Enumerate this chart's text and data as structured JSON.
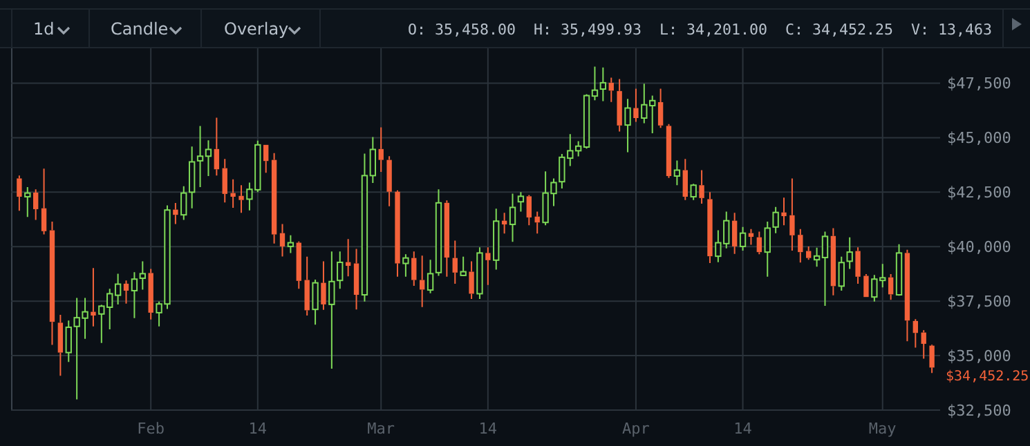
{
  "chart_data": {
    "type": "candlestick",
    "x": [
      "--01-16",
      "--01-17",
      "--01-18",
      "--01-19",
      "--01-20",
      "--01-21",
      "--01-22",
      "--01-23",
      "--01-24",
      "--01-25",
      "--01-26",
      "--01-27",
      "--01-28",
      "--01-29",
      "--01-30",
      "--01-31",
      "--02-01",
      "--02-02",
      "--02-03",
      "--02-04",
      "--02-05",
      "--02-06",
      "--02-07",
      "--02-08",
      "--02-09",
      "--02-10",
      "--02-11",
      "--02-12",
      "--02-13",
      "--02-14",
      "--02-15",
      "--02-16",
      "--02-17",
      "--02-18",
      "--02-19",
      "--02-20",
      "--02-21",
      "--02-22",
      "--02-23",
      "--02-24",
      "--02-25",
      "--02-26",
      "--02-27",
      "--02-28",
      "--03-01",
      "--03-02",
      "--03-03",
      "--03-04",
      "--03-05",
      "--03-06",
      "--03-07",
      "--03-08",
      "--03-09",
      "--03-10",
      "--03-11",
      "--03-12",
      "--03-13",
      "--03-14",
      "--03-15",
      "--03-16",
      "--03-17",
      "--03-18",
      "--03-19",
      "--03-20",
      "--03-21",
      "--03-22",
      "--03-23",
      "--03-24",
      "--03-25",
      "--03-26",
      "--03-27",
      "--03-28",
      "--03-29",
      "--03-30",
      "--03-31",
      "--04-01",
      "--04-02",
      "--04-03",
      "--04-04",
      "--04-05",
      "--04-06",
      "--04-07",
      "--04-08",
      "--04-09",
      "--04-10",
      "--04-11",
      "--04-12",
      "--04-13",
      "--04-14",
      "--04-15",
      "--04-16",
      "--04-17",
      "--04-18",
      "--04-19",
      "--04-20",
      "--04-21",
      "--04-22",
      "--04-23",
      "--04-24",
      "--04-25",
      "--04-26",
      "--04-27",
      "--04-28",
      "--04-29",
      "--04-30",
      "--05-01",
      "--05-02",
      "--05-03",
      "--05-04",
      "--05-05",
      "--05-06",
      "--05-07"
    ],
    "ohlc": [
      [
        43130,
        43260,
        41650,
        42290
      ],
      [
        42290,
        42730,
        41360,
        42460
      ],
      [
        42480,
        42630,
        41230,
        41720
      ],
      [
        41760,
        43580,
        40560,
        40710
      ],
      [
        40750,
        41150,
        35490,
        36550
      ],
      [
        36510,
        36870,
        34080,
        35140
      ],
      [
        35140,
        36610,
        34710,
        36300
      ],
      [
        36340,
        37650,
        32990,
        36740
      ],
      [
        36720,
        37650,
        35770,
        37010
      ],
      [
        37010,
        39020,
        36340,
        36840
      ],
      [
        36910,
        37330,
        35580,
        37270
      ],
      [
        37220,
        38070,
        36210,
        37840
      ],
      [
        37770,
        38760,
        37350,
        38280
      ],
      [
        38300,
        38450,
        37390,
        37980
      ],
      [
        37980,
        38830,
        36720,
        38510
      ],
      [
        38550,
        39330,
        38030,
        38760
      ],
      [
        38790,
        38980,
        36660,
        36970
      ],
      [
        36970,
        37480,
        36340,
        37370
      ],
      [
        37370,
        41890,
        37140,
        41680
      ],
      [
        41700,
        42000,
        41040,
        41460
      ],
      [
        41460,
        42770,
        41230,
        42460
      ],
      [
        42500,
        44590,
        41760,
        43890
      ],
      [
        43940,
        45540,
        42730,
        44150
      ],
      [
        44150,
        44880,
        43240,
        44460
      ],
      [
        44480,
        45920,
        43260,
        43550
      ],
      [
        43600,
        44020,
        42030,
        42420
      ],
      [
        42460,
        43090,
        41780,
        42290
      ],
      [
        42330,
        42820,
        41550,
        42140
      ],
      [
        42180,
        42940,
        41660,
        42630
      ],
      [
        42610,
        44860,
        42500,
        44670
      ],
      [
        44670,
        44670,
        43390,
        43930
      ],
      [
        43980,
        44290,
        40140,
        40560
      ],
      [
        40620,
        41040,
        39550,
        40010
      ],
      [
        40010,
        40520,
        39710,
        40180
      ],
      [
        40180,
        40240,
        38070,
        38430
      ],
      [
        38470,
        39540,
        36840,
        37080
      ],
      [
        37120,
        38490,
        36420,
        38340
      ],
      [
        38340,
        39330,
        37100,
        37350
      ],
      [
        37350,
        39780,
        34400,
        38400
      ],
      [
        38450,
        39780,
        38070,
        39280
      ],
      [
        39290,
        40350,
        38640,
        39120
      ],
      [
        39230,
        39900,
        37120,
        37790
      ],
      [
        37790,
        44270,
        37480,
        43260
      ],
      [
        43260,
        45030,
        42920,
        44460
      ],
      [
        44480,
        45470,
        43430,
        43980
      ],
      [
        43980,
        44150,
        41850,
        42520
      ],
      [
        42520,
        42580,
        38620,
        39230
      ],
      [
        39230,
        39650,
        38620,
        39480
      ],
      [
        39480,
        39780,
        38200,
        38470
      ],
      [
        38470,
        39590,
        37230,
        38030
      ],
      [
        38010,
        39400,
        37860,
        38760
      ],
      [
        38810,
        42630,
        38660,
        42010
      ],
      [
        42010,
        42120,
        38620,
        39500
      ],
      [
        39480,
        40280,
        38300,
        38810
      ],
      [
        38680,
        39540,
        38660,
        38850
      ],
      [
        38850,
        39330,
        37600,
        37840
      ],
      [
        37840,
        39970,
        37600,
        39710
      ],
      [
        39710,
        39970,
        38240,
        39380
      ],
      [
        39380,
        41740,
        38950,
        41170
      ],
      [
        41190,
        41550,
        40600,
        41020
      ],
      [
        41020,
        42430,
        40220,
        41800
      ],
      [
        42060,
        42500,
        41610,
        42310
      ],
      [
        42310,
        42370,
        40980,
        41340
      ],
      [
        41380,
        41610,
        40600,
        41110
      ],
      [
        41110,
        43450,
        40980,
        42460
      ],
      [
        42440,
        43130,
        41860,
        42940
      ],
      [
        42980,
        44250,
        42670,
        44100
      ],
      [
        44060,
        45160,
        43700,
        44400
      ],
      [
        44400,
        44840,
        44140,
        44610
      ],
      [
        44570,
        46990,
        44500,
        46930
      ],
      [
        46910,
        48260,
        46720,
        47180
      ],
      [
        47230,
        48220,
        46680,
        47520
      ],
      [
        47520,
        47750,
        46640,
        47160
      ],
      [
        47140,
        47690,
        45280,
        45560
      ],
      [
        45580,
        46780,
        44330,
        46360
      ],
      [
        46360,
        47250,
        45730,
        45900
      ],
      [
        45900,
        47480,
        45660,
        46510
      ],
      [
        46470,
        46930,
        45200,
        46700
      ],
      [
        46630,
        47250,
        45450,
        45560
      ],
      [
        45540,
        45620,
        43150,
        43240
      ],
      [
        43240,
        43950,
        42820,
        43510
      ],
      [
        43510,
        44020,
        42140,
        42290
      ],
      [
        42290,
        42880,
        42140,
        42820
      ],
      [
        42820,
        43510,
        41970,
        42230
      ],
      [
        42180,
        42500,
        39250,
        39560
      ],
      [
        39560,
        40750,
        39290,
        40180
      ],
      [
        40140,
        41610,
        39920,
        41190
      ],
      [
        41190,
        41550,
        39670,
        40010
      ],
      [
        40010,
        40900,
        39820,
        40620
      ],
      [
        40620,
        40810,
        40090,
        40450
      ],
      [
        40430,
        40690,
        39650,
        39750
      ],
      [
        39750,
        41150,
        38620,
        40850
      ],
      [
        40900,
        41820,
        40620,
        41570
      ],
      [
        41570,
        42250,
        40980,
        41400
      ],
      [
        41440,
        43130,
        39820,
        40520
      ],
      [
        40540,
        40810,
        39270,
        39750
      ],
      [
        39800,
        40010,
        39400,
        39480
      ],
      [
        39400,
        39950,
        39080,
        39570
      ],
      [
        39500,
        40690,
        37280,
        40470
      ],
      [
        40490,
        40850,
        37770,
        38190
      ],
      [
        38190,
        39540,
        37980,
        39270
      ],
      [
        39330,
        40430,
        38980,
        39750
      ],
      [
        39800,
        39970,
        38300,
        38620
      ],
      [
        38660,
        38740,
        37690,
        37690
      ],
      [
        37690,
        38700,
        37480,
        38510
      ],
      [
        38450,
        39210,
        38130,
        38570
      ],
      [
        38590,
        38740,
        37560,
        37810
      ],
      [
        37790,
        40110,
        37750,
        39710
      ],
      [
        39710,
        39860,
        35660,
        36610
      ],
      [
        36590,
        36670,
        35370,
        36040
      ],
      [
        36060,
        36170,
        34860,
        35540
      ],
      [
        35458,
        35499.93,
        34201,
        34452.25
      ]
    ],
    "colors": [
      "#f4623a",
      "#7ed957",
      "#f4623a",
      "#f4623a",
      "#f4623a",
      "#f4623a",
      "#7ed957",
      "#7ed957",
      "#7ed957",
      "#f4623a",
      "#7ed957",
      "#7ed957",
      "#7ed957",
      "#f4623a",
      "#7ed957",
      "#7ed957",
      "#f4623a",
      "#7ed957",
      "#7ed957",
      "#f4623a",
      "#7ed957",
      "#7ed957",
      "#7ed957",
      "#7ed957",
      "#f4623a",
      "#f4623a",
      "#f4623a",
      "#f4623a",
      "#7ed957",
      "#7ed957",
      "#f4623a",
      "#f4623a",
      "#f4623a",
      "#7ed957",
      "#f4623a",
      "#f4623a",
      "#7ed957",
      "#f4623a",
      "#7ed957",
      "#7ed957",
      "#f4623a",
      "#f4623a",
      "#7ed957",
      "#7ed957",
      "#f4623a",
      "#f4623a",
      "#f4623a",
      "#7ed957",
      "#f4623a",
      "#f4623a",
      "#7ed957",
      "#7ed957",
      "#f4623a",
      "#f4623a",
      "#7ed957",
      "#f4623a",
      "#7ed957",
      "#f4623a",
      "#7ed957",
      "#f4623a",
      "#7ed957",
      "#7ed957",
      "#f4623a",
      "#f4623a",
      "#7ed957",
      "#7ed957",
      "#7ed957",
      "#7ed957",
      "#7ed957",
      "#7ed957",
      "#7ed957",
      "#7ed957",
      "#f4623a",
      "#f4623a",
      "#7ed957",
      "#f4623a",
      "#7ed957",
      "#7ed957",
      "#f4623a",
      "#f4623a",
      "#7ed957",
      "#f4623a",
      "#7ed957",
      "#f4623a",
      "#f4623a",
      "#7ed957",
      "#7ed957",
      "#f4623a",
      "#7ed957",
      "#f4623a",
      "#f4623a",
      "#7ed957",
      "#7ed957",
      "#f4623a",
      "#f4623a",
      "#f4623a",
      "#f4623a",
      "#7ed957",
      "#7ed957",
      "#f4623a",
      "#7ed957",
      "#7ed957",
      "#f4623a",
      "#f4623a",
      "#7ed957",
      "#7ed957",
      "#f4623a",
      "#7ed957",
      "#f4623a",
      "#f4623a",
      "#f4623a",
      "#f4623a"
    ],
    "xlim": [
      "--01-15",
      "--05-08"
    ],
    "xticks": [
      {
        "value": "--02-01",
        "label": "Feb"
      },
      {
        "value": "--02-14",
        "label": "14"
      },
      {
        "value": "--03-01",
        "label": "Mar"
      },
      {
        "value": "--03-14",
        "label": "14"
      },
      {
        "value": "--04-01",
        "label": "Apr"
      },
      {
        "value": "--04-14",
        "label": "14"
      },
      {
        "value": "--05-01",
        "label": "May"
      }
    ],
    "ylim": [
      32500,
      49100
    ],
    "yticks": [
      {
        "value": 32500,
        "label": "$32,500"
      },
      {
        "value": 35000,
        "label": "$35,000"
      },
      {
        "value": 37500,
        "label": "$37,500"
      },
      {
        "value": 40000,
        "label": "$40,000"
      },
      {
        "value": 42500,
        "label": "$42,500"
      },
      {
        "value": 45000,
        "label": "$45,000"
      },
      {
        "value": 47500,
        "label": "$47,500"
      }
    ],
    "grid": true,
    "annotations": [
      "1d",
      "Candle",
      "Overlay",
      "O: 35,458.00",
      "H: 35,499.93",
      "L: 34,201.00",
      "C: 34,452.25",
      "V: 13,463",
      "$34,452.25"
    ]
  }
}
